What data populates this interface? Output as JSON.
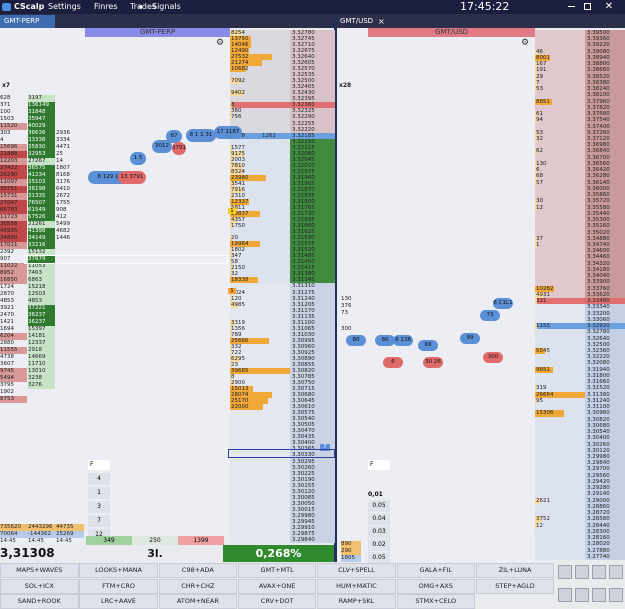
{
  "menu": {
    "app": "CScalp",
    "items": [
      "Settings",
      "Finres",
      "Trades"
    ],
    "arrow": "◂",
    "signals": "Signals",
    "time": "17:45:22"
  },
  "tabs": [
    {
      "label": "GMT-PERP"
    },
    {
      "label": "GMT/USD",
      "close": "×"
    }
  ],
  "left": {
    "header": "GMT-PERP",
    "zoom": "x7",
    "prices": [
      "3.32780",
      "3.32745",
      "3.32710",
      "3.32675",
      "3.32640",
      "3.32605",
      "3.32570",
      "3.32535",
      "3.32500",
      "3.32465",
      "3.32430",
      "3.32395",
      "3.32360",
      "3.32325",
      "3.32290",
      "3.32255",
      "3.32220",
      "3.32185",
      "3.32150",
      "3.32115",
      "3.32080",
      "3.32045",
      "3.32010",
      "3.31975",
      "3.31940",
      "3.31905",
      "3.31870",
      "3.31835",
      "3.31800",
      "3.31765",
      "3.31730",
      "3.31695",
      "3.31660",
      "3.31625",
      "3.31590",
      "3.31555",
      "3.31520",
      "3.31485",
      "3.31450",
      "3.31415",
      "3.31380",
      "3.31345",
      "3.31310",
      "3.31275",
      "3.31240",
      "3.31205",
      "3.31170",
      "3.31135",
      "3.31100",
      "3.31065",
      "3.31030",
      "3.30995",
      "3.30960",
      "3.30925",
      "3.30890",
      "3.30855",
      "3.30820",
      "3.30785",
      "3.30750",
      "3.30715",
      "3.30680",
      "3.30645",
      "3.30610",
      "3.30575",
      "3.30540",
      "3.30505",
      "3.30470",
      "3.30435",
      "3.30400",
      "3.30365",
      "3.30330",
      "3.30295",
      "3.30260",
      "3.30225",
      "3.30190",
      "3.30155",
      "3.30120",
      "3.30085",
      "3.30050",
      "3.30015",
      "3.29980",
      "3.29945",
      "3.29910",
      "3.29875",
      "3.29840"
    ],
    "volumes": [
      8254,
      13750,
      14046,
      12490,
      27532,
      21274,
      10682,
      null,
      7092,
      null,
      9402,
      null,
      8,
      380,
      756,
      null,
      null,
      2498,
      null,
      1577,
      9175,
      2003,
      7810,
      8324,
      23980,
      3541,
      7916,
      2310,
      12337,
      5811,
      19837,
      4357,
      1750,
      null,
      20,
      19964,
      1802,
      347,
      58,
      2150,
      32,
      18338,
      null,
      1024,
      120,
      4985,
      null,
      null,
      3319,
      1356,
      789,
      25666,
      332,
      722,
      6295,
      23,
      39685,
      8,
      2900,
      15013,
      28074,
      25170,
      22000,
      null,
      null,
      null,
      null,
      null,
      null,
      null,
      null,
      null,
      null,
      null,
      null,
      null,
      null,
      null,
      null,
      null,
      null,
      null,
      null,
      null,
      null
    ],
    "spread_ask": 1262,
    "cluster": [
      [
        628,
        371,
        100,
        1503,
        11520,
        303,
        4,
        15696,
        21888,
        12203,
        27422,
        26290,
        11097,
        35751,
        15731,
        27047,
        66783,
        11723,
        30558,
        45935,
        34880,
        17011,
        2392,
        907,
        11022,
        8952,
        16850,
        1724,
        2870,
        4853,
        3921,
        2470,
        1421,
        1694,
        6204,
        2880,
        11555,
        4738,
        3607,
        9745,
        5494,
        3795,
        1902,
        8753
      ],
      [
        3197,
        136149,
        31848,
        35947,
        40029,
        36636,
        33338,
        35830,
        32953,
        27267,
        36575,
        41234,
        35103,
        36198,
        31335,
        76507,
        61549,
        57526,
        21261,
        41398,
        34149,
        33216,
        15132,
        37679,
        11053,
        7463,
        6863,
        15218,
        12503,
        4853,
        37221,
        36237,
        36237,
        15397,
        14181,
        12337,
        2918,
        14669,
        11710,
        13010,
        3238,
        3276
      ],
      [
        2936,
        3334,
        4471,
        25,
        14,
        1807,
        8168,
        3176,
        6410,
        2672,
        1755,
        908,
        412,
        5499,
        4682,
        1446
      ]
    ],
    "trades": [
      {
        "label": "8 129 1",
        "color": "#5b8fd6"
      },
      {
        "label": "13 3791",
        "color": "#e06a6a"
      },
      {
        "label": "1 5",
        "color": "#5b8fd6"
      },
      {
        "label": "3012",
        "color": "#5b8fd6"
      },
      {
        "label": "67",
        "color": "#5b8fd6"
      },
      {
        "label": "3791",
        "color": "#e06a6a"
      },
      {
        "label": "8 1 1 31",
        "color": "#5b8fd6"
      },
      {
        "label": "17 2187",
        "color": "#5b8fd6"
      }
    ],
    "stats": [
      [
        735620,
        2443296,
        44735
      ],
      [
        70064,
        -144362,
        25269
      ],
      [
        "14:45",
        "14:45",
        "14:45"
      ]
    ],
    "price": "3,31308",
    "position": "3l.",
    "change": "0,268%",
    "orders": [
      349,
      250,
      1399
    ],
    "filter": "F",
    "sizes": [
      4,
      1,
      3,
      7,
      12
    ],
    "marker_a": 1,
    "marker_b": 1,
    "marker_c": 7
  },
  "right": {
    "header": "GMT/USD",
    "zoom": "x28",
    "prices": [
      "3.39500",
      "3.39360",
      "3.39220",
      "3.39080",
      "3.38940",
      "3.38800",
      "3.38660",
      "3.38520",
      "3.38380",
      "3.38240",
      "3.38100",
      "3.37960",
      "3.37820",
      "3.37680",
      "3.37540",
      "3.37400",
      "3.37260",
      "3.37120",
      "3.36980",
      "3.36840",
      "3.36700",
      "3.36560",
      "3.36420",
      "3.36280",
      "3.36140",
      "3.36000",
      "3.35860",
      "3.35720",
      "3.35580",
      "3.35440",
      "3.35300",
      "3.35160",
      "3.35020",
      "3.34880",
      "3.34740",
      "3.34600",
      "3.34460",
      "3.34320",
      "3.34180",
      "3.34040",
      "3.33900",
      "3.33760",
      "3.33620",
      "3.33480",
      "3.33340",
      "3.33200",
      "3.33060",
      "3.32920",
      "3.32780",
      "3.32640",
      "3.32500",
      "3.32360",
      "3.32220",
      "3.32080",
      "3.31940",
      "3.31800",
      "3.31660",
      "3.31520",
      "3.31380",
      "3.31240",
      "3.31100",
      "3.30960",
      "3.30820",
      "3.30680",
      "3.30540",
      "3.30400",
      "3.30260",
      "3.30120",
      "3.29980",
      "3.29840",
      "3.29700",
      "3.29560",
      "3.29420",
      "3.29280",
      "3.29140",
      "3.29000",
      "3.28860",
      "3.28720",
      "3.28580",
      "3.28440",
      "3.28300",
      "3.28160",
      "3.28020",
      "3.27880",
      "3.27740"
    ],
    "volumes": [
      null,
      null,
      null,
      46,
      8001,
      167,
      191,
      29,
      7,
      53,
      null,
      8851,
      null,
      61,
      94,
      null,
      53,
      32,
      null,
      62,
      null,
      130,
      6,
      68,
      57,
      null,
      null,
      30,
      12,
      null,
      null,
      null,
      null,
      37,
      1,
      null,
      null,
      null,
      null,
      null,
      null,
      10282,
      4931,
      321,
      null,
      null,
      null,
      1155,
      null,
      null,
      null,
      5545,
      null,
      null,
      9851,
      null,
      null,
      319,
      26664,
      95,
      null,
      15306,
      null,
      null,
      null,
      null,
      null,
      null,
      null,
      null,
      null,
      null,
      null,
      null,
      null,
      2621,
      null,
      null,
      3752,
      12,
      null,
      null,
      null,
      null,
      null
    ],
    "trades": [
      {
        "label": "80",
        "color": "#5b8fd6"
      },
      {
        "label": "80",
        "color": "#5b8fd6"
      },
      {
        "label": "6",
        "color": "#e06a6a"
      },
      {
        "label": "8 138",
        "color": "#5b8fd6"
      },
      {
        "label": "69",
        "color": "#5b8fd6"
      },
      {
        "label": "30 26",
        "color": "#e06a6a"
      },
      {
        "label": "99",
        "color": "#5b8fd6"
      },
      {
        "label": "73",
        "color": "#5b8fd6"
      },
      {
        "label": "300",
        "color": "#e06a6a"
      },
      {
        "label": "6 C1L1",
        "color": "#5b8fd6"
      }
    ],
    "side_labels": [
      130,
      376,
      73,
      300
    ],
    "bottom_left": [
      890,
      290,
      1805
    ],
    "filter": "F",
    "step": "0,01",
    "sizes": [
      "0.05",
      "0.04",
      "0.03",
      "0.02",
      "0.05"
    ]
  },
  "buttons": [
    [
      "MAPS+WAVES",
      "LOOKS+MANA",
      "C98+ADA",
      "GMT+MTL",
      "CLV+SPELL",
      "GALA+FIL",
      "ZIL+LUNA"
    ],
    [
      "SOL+ICX",
      "FTM+CRO",
      "CHR+CHZ",
      "AVAX+ONE",
      "HUM+MATIC",
      "OMG+AXS",
      "STEP+AGLD"
    ],
    [
      "SAND+ROOK",
      "LRC+AAVE",
      "ATOM+NEAR",
      "CRV+DOT",
      "RAMP+SKL",
      "STMX+CELO"
    ]
  ]
}
